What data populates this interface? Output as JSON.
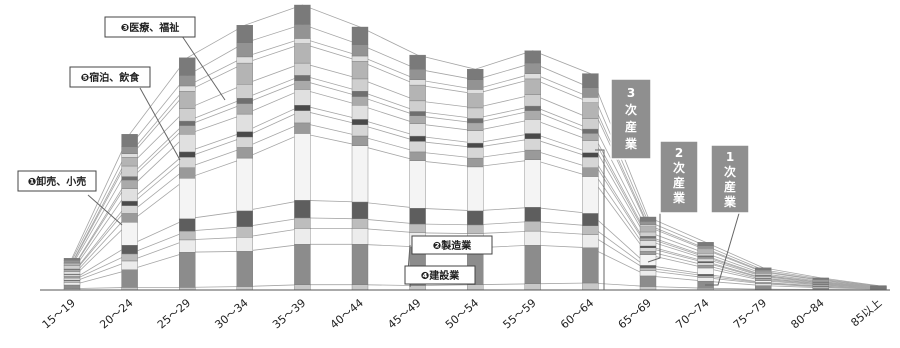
{
  "chart_data": {
    "type": "bar",
    "stacked": true,
    "categories": [
      "15～19",
      "20～24",
      "25～29",
      "30～34",
      "35～39",
      "40～44",
      "45～49",
      "50～54",
      "55～59",
      "60～64",
      "65～69",
      "70～74",
      "75～79",
      "80～84",
      "85以上"
    ],
    "colors": [
      "#c8c8c8",
      "#8c8c8c",
      "#ececec",
      "#bdbdbd",
      "#5e5e5e",
      "#f4f4f4",
      "#9a9a9a",
      "#d6d6d6",
      "#4a4a4a",
      "#e0e0e0",
      "#aaaaaa",
      "#6f6f6f",
      "#cfcfcf",
      "#b4b4b4",
      "#dedede",
      "#939393",
      "#7a7a7a"
    ],
    "series": [
      {
        "values": [
          0.8,
          1.5,
          1.5,
          2,
          3,
          3,
          2.5,
          3,
          3.5,
          4,
          2,
          1,
          0.5,
          0.3,
          0.1
        ]
      },
      {
        "values": [
          2,
          10,
          20,
          20,
          23,
          23,
          22,
          21,
          22,
          20,
          6,
          4,
          2,
          1,
          0.4
        ]
      },
      {
        "values": [
          1.5,
          5,
          7,
          8,
          9,
          9,
          8,
          8,
          8,
          7.5,
          3,
          2,
          1,
          0.5,
          0.2
        ]
      },
      {
        "values": [
          1,
          4,
          5,
          6,
          6,
          5.5,
          5,
          5,
          5.5,
          5,
          1.5,
          1,
          0.5,
          0.3,
          0.1
        ]
      },
      {
        "values": [
          0.4,
          5,
          7,
          9,
          10,
          9.5,
          9,
          8,
          8,
          7,
          1.5,
          1,
          0.3,
          0.2,
          0.1
        ]
      },
      {
        "values": [
          1,
          13,
          23,
          30,
          38,
          32,
          27,
          25,
          27,
          21,
          6,
          3.5,
          1,
          0.5,
          0.2
        ]
      },
      {
        "values": [
          1,
          5,
          6,
          6,
          6,
          5.5,
          5,
          5,
          5.5,
          5,
          2,
          1.5,
          0.6,
          0.3,
          0.1
        ]
      },
      {
        "values": [
          1,
          4.5,
          6,
          6,
          7,
          6.5,
          6,
          6,
          6.5,
          6,
          2,
          1.5,
          0.6,
          0.3,
          0.1
        ]
      },
      {
        "values": [
          0.3,
          2.5,
          3,
          3,
          3,
          3,
          3,
          2.5,
          3,
          2.5,
          1,
          0.7,
          0.3,
          0.2,
          0.1
        ]
      },
      {
        "values": [
          1.5,
          7,
          10,
          10,
          9,
          8,
          7,
          7,
          8,
          7,
          3,
          1.5,
          0.8,
          0.4,
          0.1
        ]
      },
      {
        "values": [
          1,
          5,
          5,
          6,
          5,
          5,
          4.5,
          4.5,
          5,
          4,
          1.5,
          1,
          0.5,
          0.3,
          0.1
        ]
      },
      {
        "values": [
          0.4,
          2,
          2.5,
          3,
          3,
          3,
          2.5,
          2.5,
          2.5,
          2.5,
          1,
          0.7,
          0.3,
          0.2,
          0.1
        ]
      },
      {
        "values": [
          2,
          6,
          7,
          8,
          7,
          7,
          6,
          6,
          6.5,
          6,
          2.5,
          1.5,
          0.8,
          0.4,
          0.1
        ]
      },
      {
        "values": [
          1,
          5,
          10,
          12,
          11,
          10,
          9,
          8,
          9,
          9,
          3,
          2,
          1,
          0.6,
          0.2
        ]
      },
      {
        "values": [
          0.5,
          2,
          3,
          3.5,
          3,
          3,
          3,
          2.5,
          3,
          3,
          1,
          0.7,
          0.4,
          0.3,
          0.1
        ]
      },
      {
        "values": [
          1.5,
          4,
          6,
          8,
          8,
          6.5,
          6,
          5.5,
          6,
          5.5,
          2,
          1.5,
          0.8,
          0.5,
          0.2
        ]
      },
      {
        "values": [
          1.2,
          7,
          10,
          10,
          11,
          10,
          8,
          6,
          7,
          8,
          2.5,
          2,
          1.2,
          0.6,
          0.2
        ]
      }
    ],
    "annotations": {
      "wholesale": "❶卸売、小売",
      "lodging": "❺宿泊、飲食",
      "medical": "❸医療、福祉",
      "manufacturing": "❷製造業",
      "construction": "❹建設業",
      "tertiary": [
        "3",
        "次",
        "産",
        "業"
      ],
      "secondary": [
        "2",
        "次",
        "産",
        "業"
      ],
      "primary": [
        "1",
        "次",
        "産",
        "業"
      ]
    },
    "legend": "none",
    "grid": false
  }
}
